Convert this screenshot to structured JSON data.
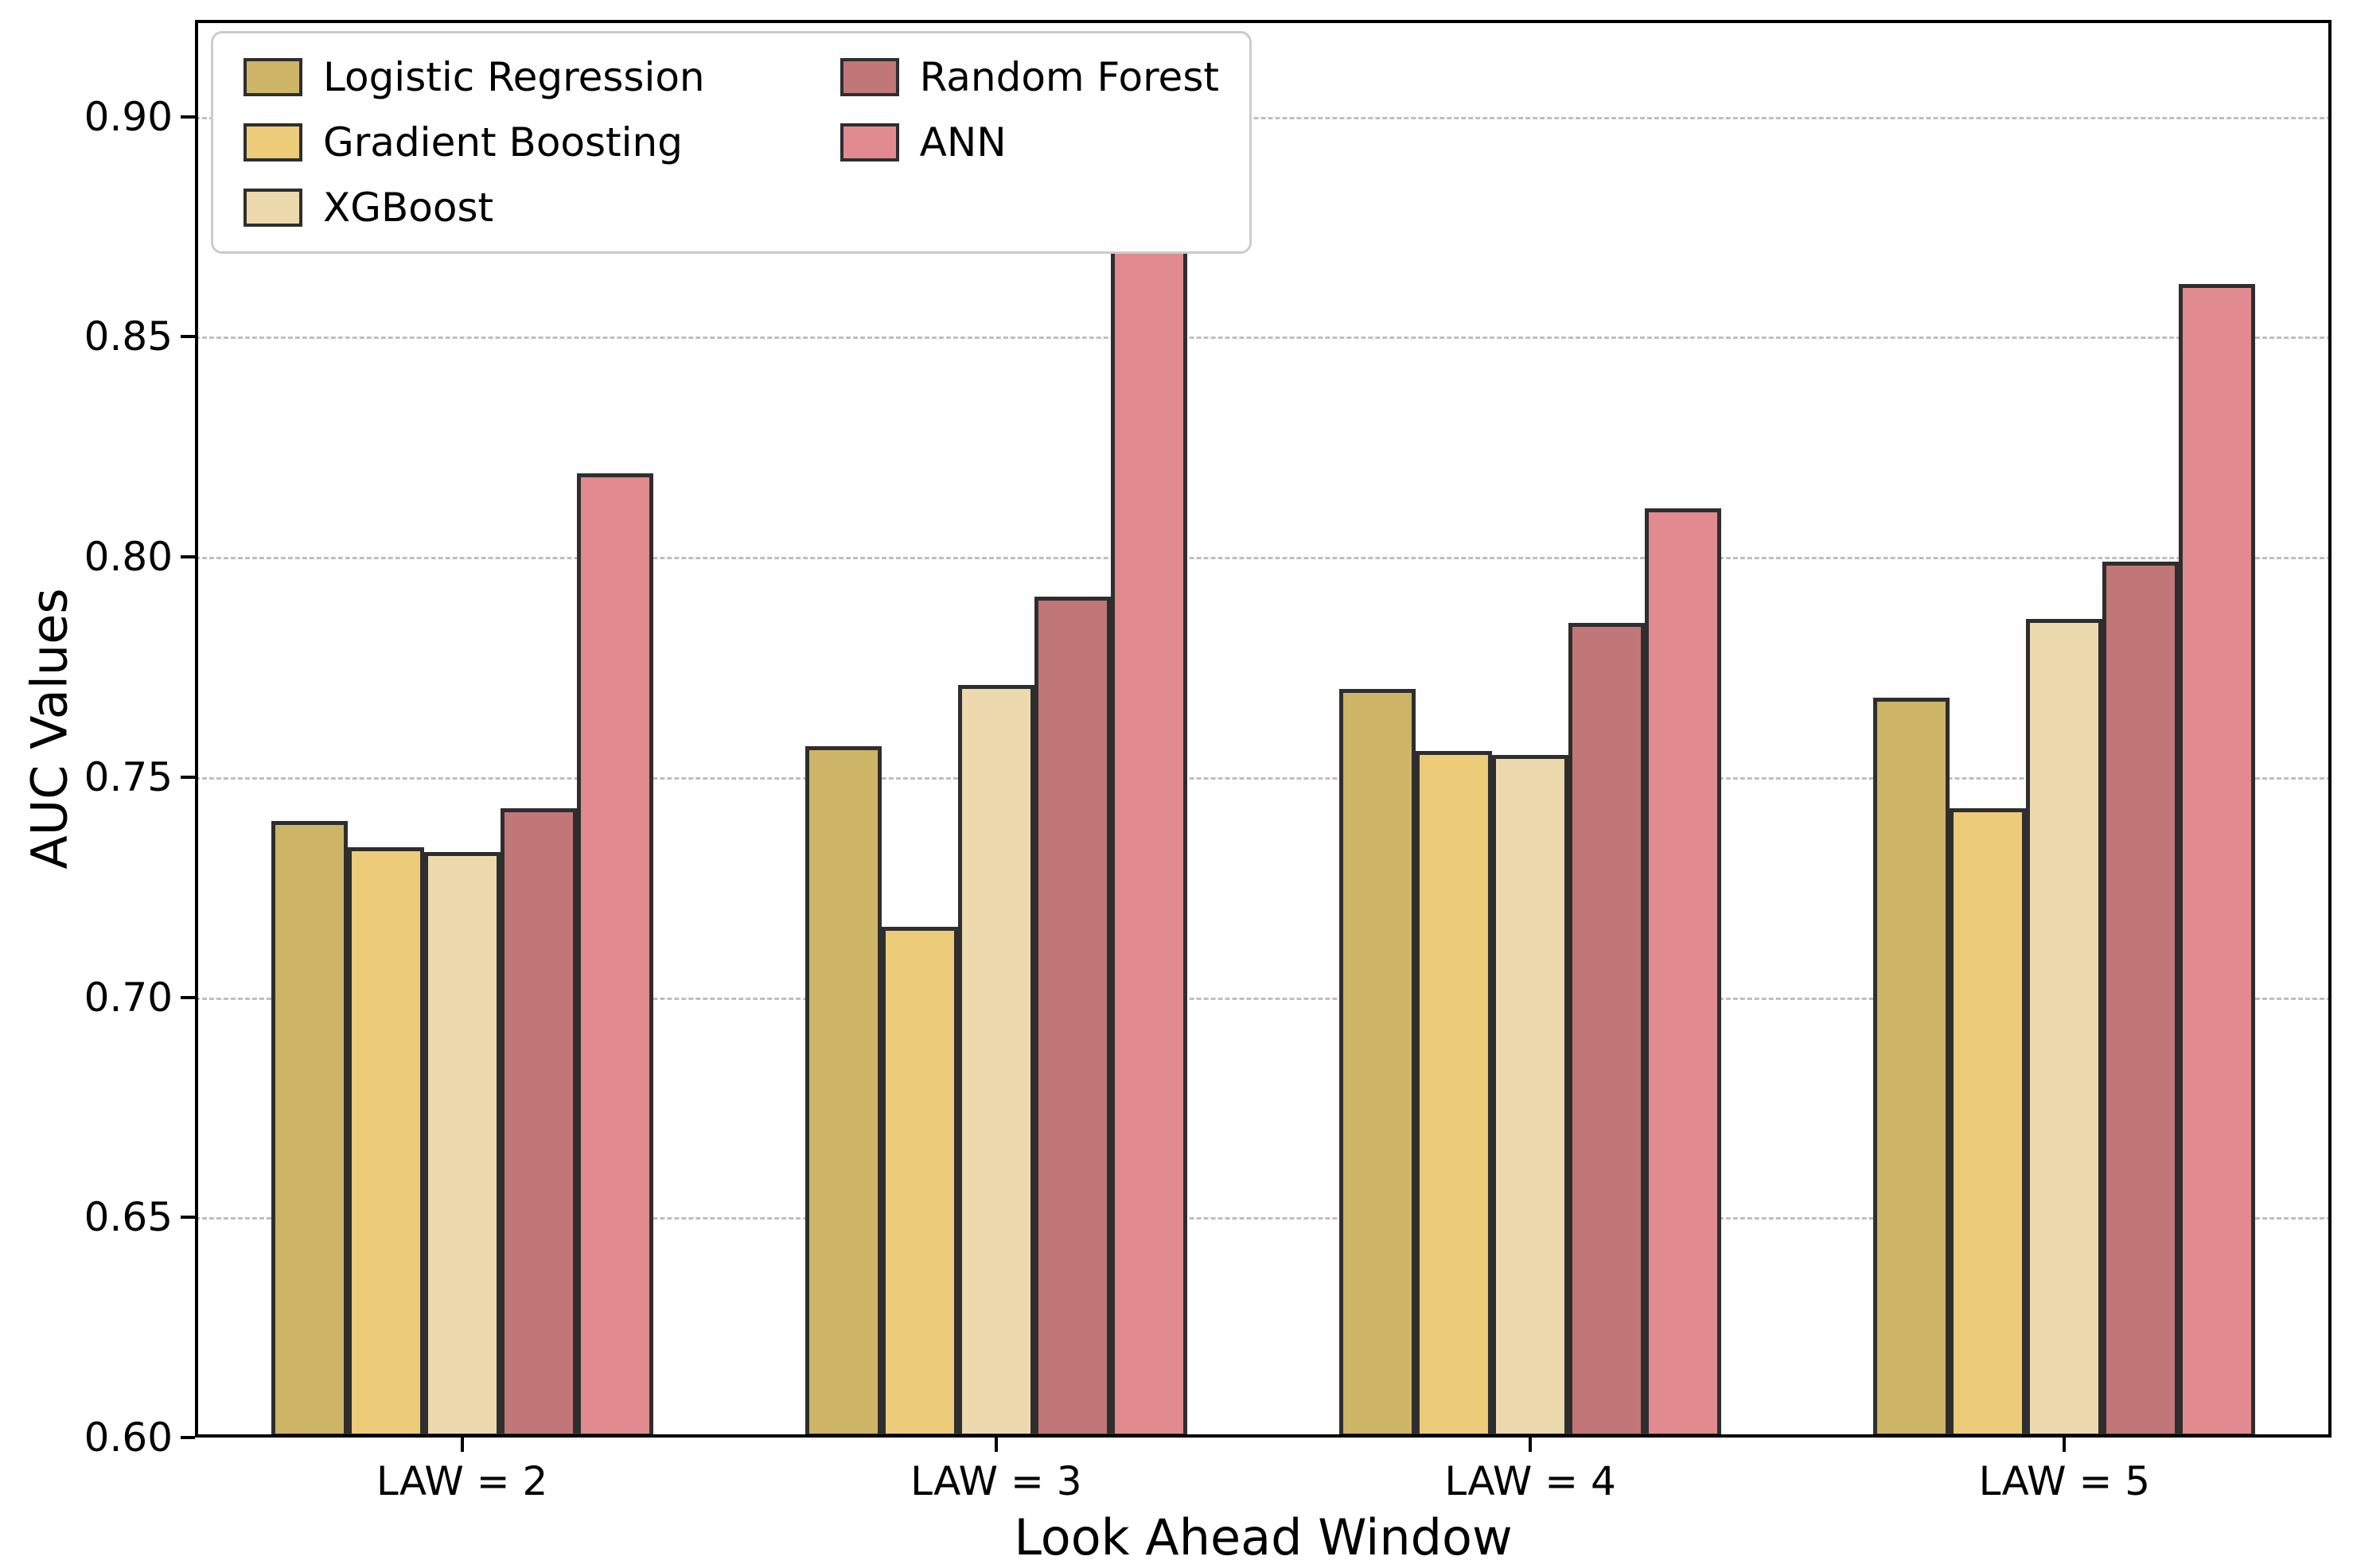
{
  "figure": {
    "background": "#ffffff",
    "axis_color": "#000000",
    "gridline_color": "#bfbfbf",
    "bar_edge_color": "#2e2e2e"
  },
  "chart_data": {
    "type": "bar",
    "title": "",
    "xlabel": "Look Ahead Window",
    "ylabel": "AUC Values",
    "categories": [
      "LAW = 2",
      "LAW = 3",
      "LAW = 4",
      "LAW = 5"
    ],
    "series": [
      {
        "name": "Logistic Regression",
        "color": "#cdb467",
        "values": [
          0.74,
          0.757,
          0.77,
          0.768
        ]
      },
      {
        "name": "Gradient Boosting",
        "color": "#eccb79",
        "values": [
          0.734,
          0.716,
          0.756,
          0.743
        ]
      },
      {
        "name": "XGBoost",
        "color": "#edd9ae",
        "values": [
          0.733,
          0.771,
          0.755,
          0.786
        ]
      },
      {
        "name": "Random Forest",
        "color": "#c17678",
        "values": [
          0.743,
          0.791,
          0.785,
          0.799
        ]
      },
      {
        "name": "ANN",
        "color": "#e18b90",
        "values": [
          0.819,
          0.872,
          0.811,
          0.862
        ]
      }
    ],
    "ylim": [
      0.6,
      0.922
    ],
    "yticks": [
      "0.60",
      "0.65",
      "0.70",
      "0.75",
      "0.80",
      "0.85",
      "0.90"
    ],
    "grid": "horizontal-dashed",
    "legend_position": "upper-left",
    "legend_columns": 2
  }
}
